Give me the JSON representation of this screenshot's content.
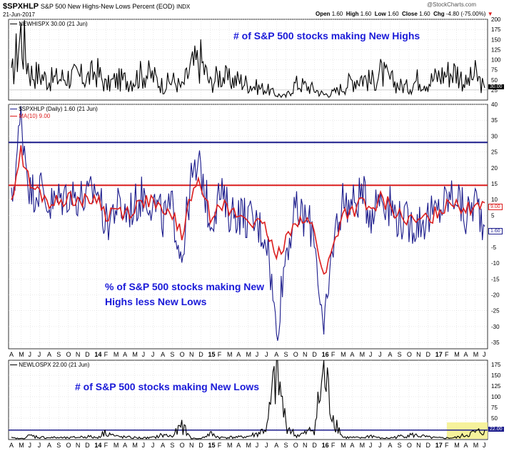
{
  "header": {
    "symbol": "$SPXHLP",
    "title": "S&P 500 New Highs-New Lows Percent (EOD)",
    "exchange": "INDX",
    "date": "21-Jun-2017",
    "open_label": "Open",
    "open": "1.60",
    "high_label": "High",
    "high": "1.60",
    "low_label": "Low",
    "low": "1.60",
    "close_label": "Close",
    "close": "1.60",
    "chg_label": "Chg",
    "chg": "-4.80 (-75.00%)",
    "credit": "@StockCharts.com"
  },
  "colors": {
    "navy": "#1c1c8c",
    "red": "#dc1e1e",
    "highlight": "#f4f08a",
    "grid": "#d4d4d4"
  },
  "panels": {
    "top": {
      "legend": "NEWHISPX 30.00 (21 Jun)",
      "last_value": "30.00",
      "annotation": "# of S&P 500 stocks making New Highs"
    },
    "middle": {
      "legend": "$SPXHLP (Daily) 1.60 (21 Jun)",
      "legend_ma": "MA(10) 9.00",
      "last_value": "1.60",
      "ma_value": "9.00",
      "annotation_line1": "% of S&P 500 stocks making New",
      "annotation_line2": "Highs less New Lows"
    },
    "bottom": {
      "legend": "NEWLOSPX 22.00 (21 Jun)",
      "last_value": "22.00",
      "annotation": "# of S&P 500 stocks making New Lows"
    }
  },
  "chart_data": [
    {
      "type": "line",
      "name": "NEWHISPX",
      "ylim": [
        0,
        200
      ],
      "yticks": [
        25,
        50,
        75,
        100,
        125,
        150,
        175,
        200
      ],
      "x": [
        "2013-04",
        "2013-05",
        "2013-06",
        "2013-07",
        "2013-08",
        "2013-09",
        "2013-10",
        "2013-11",
        "2013-12",
        "2014-01",
        "2014-02",
        "2014-03",
        "2014-04",
        "2014-05",
        "2014-06",
        "2014-07",
        "2014-08",
        "2014-09",
        "2014-10",
        "2014-11",
        "2014-12",
        "2015-01",
        "2015-02",
        "2015-03",
        "2015-04",
        "2015-05",
        "2015-06",
        "2015-07",
        "2015-08",
        "2015-09",
        "2015-10",
        "2015-11",
        "2015-12",
        "2016-01",
        "2016-02",
        "2016-03",
        "2016-04",
        "2016-05",
        "2016-06",
        "2016-07",
        "2016-08",
        "2016-09",
        "2016-10",
        "2016-11",
        "2016-12",
        "2017-01",
        "2017-02",
        "2017-03",
        "2017-04",
        "2017-05",
        "2017-06"
      ],
      "values": [
        60,
        185,
        75,
        70,
        55,
        60,
        65,
        65,
        60,
        80,
        40,
        55,
        55,
        60,
        75,
        65,
        40,
        55,
        35,
        90,
        110,
        45,
        70,
        55,
        55,
        45,
        35,
        30,
        15,
        10,
        45,
        40,
        30,
        15,
        20,
        35,
        55,
        65,
        50,
        75,
        55,
        40,
        35,
        60,
        50,
        65,
        75,
        80,
        45,
        70,
        30
      ],
      "hline": 25
    },
    {
      "type": "line",
      "name": "$SPXHLP",
      "ylim": [
        -37,
        40
      ],
      "yticks": [
        -35,
        -30,
        -25,
        -20,
        -15,
        -10,
        -5,
        0,
        5,
        10,
        15,
        20,
        25,
        30,
        35,
        40
      ],
      "x": [
        "2013-04",
        "2013-05",
        "2013-06",
        "2013-07",
        "2013-08",
        "2013-09",
        "2013-10",
        "2013-11",
        "2013-12",
        "2014-01",
        "2014-02",
        "2014-03",
        "2014-04",
        "2014-05",
        "2014-06",
        "2014-07",
        "2014-08",
        "2014-09",
        "2014-10",
        "2014-11",
        "2014-12",
        "2015-01",
        "2015-02",
        "2015-03",
        "2015-04",
        "2015-05",
        "2015-06",
        "2015-07",
        "2015-08",
        "2015-09",
        "2015-10",
        "2015-11",
        "2015-12",
        "2016-01",
        "2016-02",
        "2016-03",
        "2016-04",
        "2016-05",
        "2016-06",
        "2016-07",
        "2016-08",
        "2016-09",
        "2016-10",
        "2016-11",
        "2016-12",
        "2017-01",
        "2017-02",
        "2017-03",
        "2017-04",
        "2017-05",
        "2017-06"
      ],
      "values": [
        8,
        36,
        12,
        14,
        8,
        10,
        12,
        11,
        10,
        14,
        2,
        8,
        6,
        8,
        12,
        9,
        4,
        7,
        -8,
        16,
        20,
        3,
        12,
        6,
        6,
        4,
        2,
        -2,
        -32,
        -6,
        6,
        4,
        0,
        -34,
        -3,
        10,
        8,
        12,
        6,
        12,
        8,
        4,
        2,
        3,
        4,
        6,
        10,
        12,
        4,
        10,
        1.6
      ],
      "ma10": [
        10,
        25,
        14,
        12,
        9,
        9,
        11,
        10,
        9,
        11,
        5,
        7,
        6,
        7,
        10,
        9,
        5,
        6,
        -2,
        12,
        15,
        5,
        10,
        6,
        5,
        4,
        2,
        0,
        -9,
        -2,
        4,
        3,
        1,
        -15,
        -5,
        6,
        6,
        9,
        6,
        10,
        8,
        5,
        3,
        3,
        4,
        6,
        9,
        10,
        6,
        9,
        9
      ],
      "hlines": [
        {
          "value": 28,
          "color": "navy"
        },
        {
          "value": 14.5,
          "color": "red"
        }
      ]
    },
    {
      "type": "line",
      "name": "NEWLOSPX",
      "ylim": [
        0,
        185
      ],
      "yticks": [
        25,
        50,
        75,
        100,
        125,
        150,
        175
      ],
      "x": [
        "2013-04",
        "2013-05",
        "2013-06",
        "2013-07",
        "2013-08",
        "2013-09",
        "2013-10",
        "2013-11",
        "2013-12",
        "2014-01",
        "2014-02",
        "2014-03",
        "2014-04",
        "2014-05",
        "2014-06",
        "2014-07",
        "2014-08",
        "2014-09",
        "2014-10",
        "2014-11",
        "2014-12",
        "2015-01",
        "2015-02",
        "2015-03",
        "2015-04",
        "2015-05",
        "2015-06",
        "2015-07",
        "2015-08",
        "2015-09",
        "2015-10",
        "2015-11",
        "2015-12",
        "2016-01",
        "2016-02",
        "2016-03",
        "2016-04",
        "2016-05",
        "2016-06",
        "2016-07",
        "2016-08",
        "2016-09",
        "2016-10",
        "2016-11",
        "2016-12",
        "2017-01",
        "2017-02",
        "2017-03",
        "2017-04",
        "2017-05",
        "2017-06"
      ],
      "values": [
        4,
        2,
        10,
        6,
        5,
        5,
        4,
        6,
        8,
        5,
        20,
        8,
        6,
        5,
        4,
        5,
        12,
        8,
        35,
        3,
        2,
        15,
        5,
        6,
        6,
        8,
        15,
        30,
        175,
        40,
        10,
        15,
        30,
        170,
        60,
        6,
        5,
        4,
        10,
        3,
        4,
        8,
        12,
        10,
        6,
        4,
        4,
        5,
        12,
        18,
        22
      ],
      "hline": 22
    }
  ],
  "x_axis": {
    "labels": [
      "A",
      "M",
      "J",
      "J",
      "A",
      "S",
      "O",
      "N",
      "D",
      "14",
      "F",
      "M",
      "A",
      "M",
      "J",
      "J",
      "A",
      "S",
      "O",
      "N",
      "D",
      "15",
      "F",
      "M",
      "A",
      "M",
      "J",
      "J",
      "A",
      "S",
      "O",
      "N",
      "D",
      "16",
      "F",
      "M",
      "A",
      "M",
      "J",
      "J",
      "A",
      "S",
      "O",
      "N",
      "D",
      "17",
      "F",
      "M",
      "A",
      "M",
      "J"
    ],
    "year_labels": [
      "14",
      "15",
      "16",
      "17"
    ]
  }
}
